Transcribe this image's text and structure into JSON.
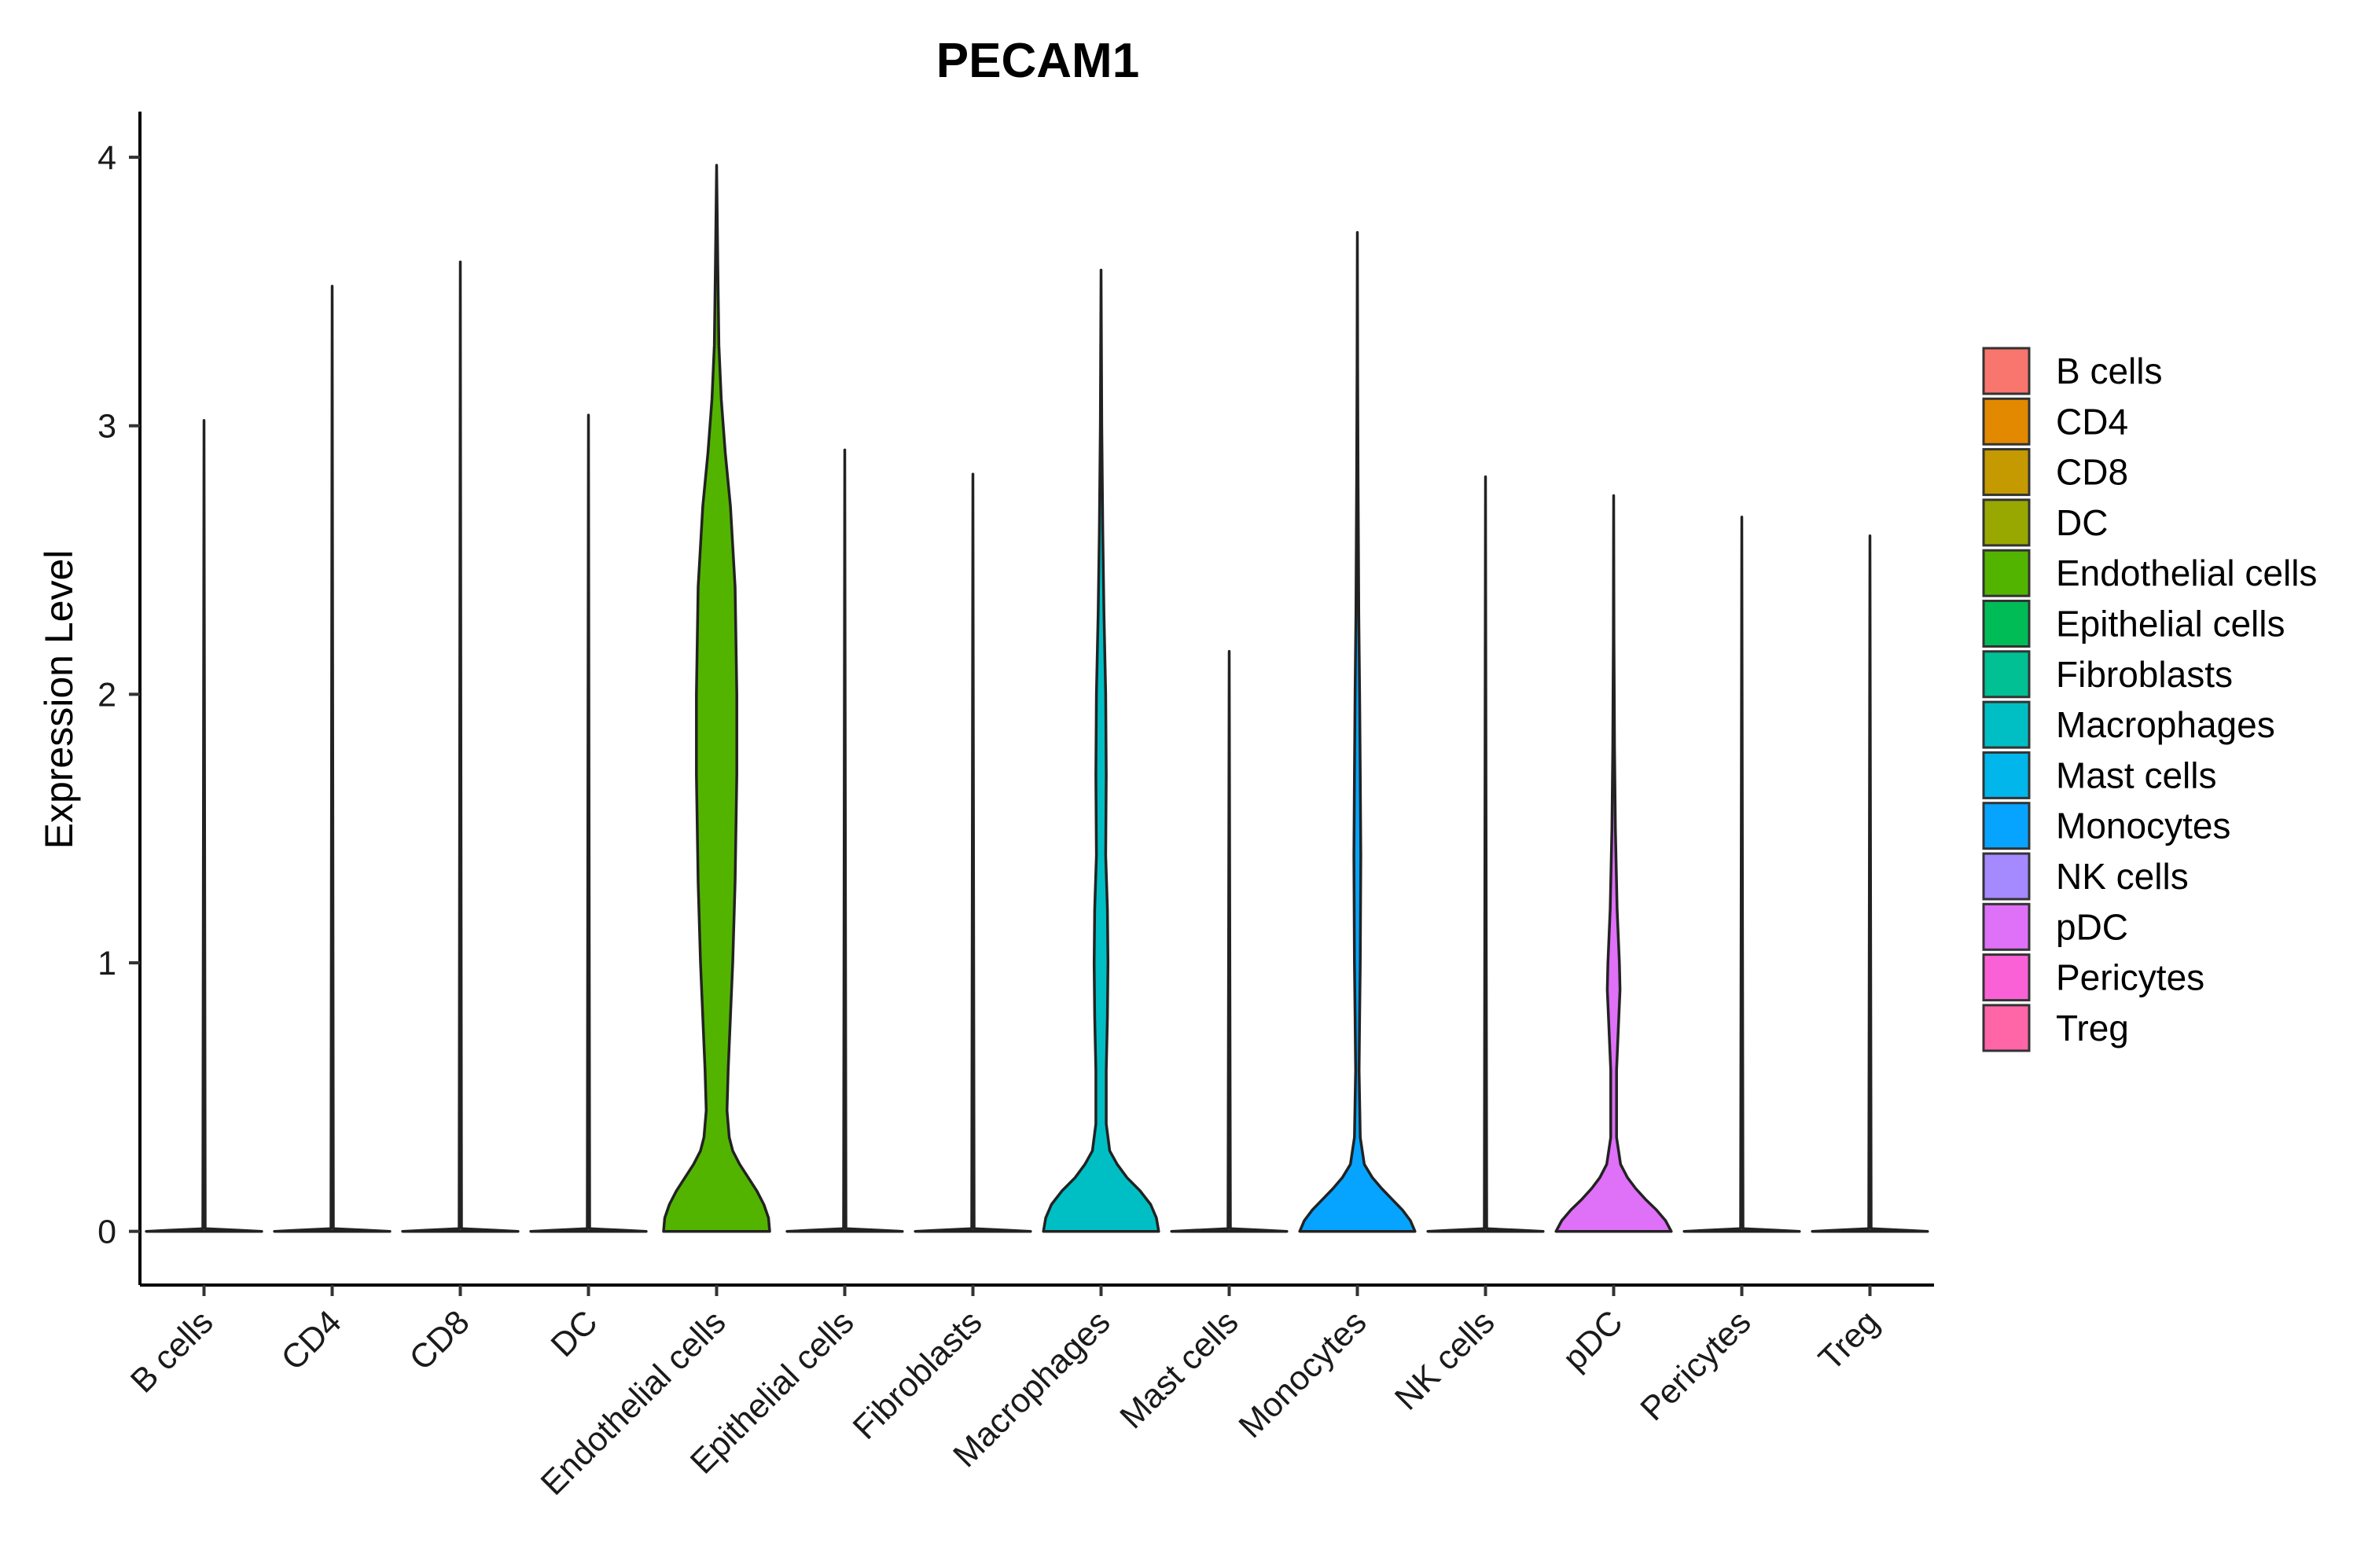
{
  "chart_data": {
    "type": "violin",
    "title": "PECAM1",
    "xlabel": "",
    "ylabel": "Expression Level",
    "ylim": [
      -0.2,
      4.17
    ],
    "yticks": [
      0,
      1,
      2,
      3,
      4
    ],
    "categories": [
      "B cells",
      "CD4",
      "CD8",
      "DC",
      "Endothelial cells",
      "Epithelial cells",
      "Fibroblasts",
      "Macrophages",
      "Mast cells",
      "Monocytes",
      "NK cells",
      "pDC",
      "Pericytes",
      "Treg"
    ],
    "colors": [
      "#F8766D",
      "#E38900",
      "#C49A00",
      "#99A800",
      "#53B400",
      "#00BC56",
      "#00C094",
      "#00BFC4",
      "#00B6EB",
      "#06A4FF",
      "#A58AFF",
      "#DF70F8",
      "#FB61D7",
      "#FF66A8"
    ],
    "max_expression": [
      3.02,
      3.52,
      3.61,
      3.04,
      3.97,
      2.91,
      2.82,
      3.58,
      2.16,
      3.72,
      2.81,
      2.74,
      2.66,
      2.59
    ],
    "density_profiles": [
      [
        [
          0,
          1.0
        ],
        [
          0.004,
          0.6
        ],
        [
          0.01,
          0.02
        ],
        [
          3.02,
          0.0
        ]
      ],
      [
        [
          0,
          1.0
        ],
        [
          0.004,
          0.6
        ],
        [
          0.01,
          0.02
        ],
        [
          3.52,
          0.0
        ]
      ],
      [
        [
          0,
          1.0
        ],
        [
          0.004,
          0.6
        ],
        [
          0.01,
          0.02
        ],
        [
          3.61,
          0.0
        ]
      ],
      [
        [
          0,
          1.0
        ],
        [
          0.004,
          0.6
        ],
        [
          0.01,
          0.02
        ],
        [
          3.04,
          0.0
        ]
      ],
      [
        [
          0,
          0.92
        ],
        [
          0.05,
          0.9
        ],
        [
          0.1,
          0.82
        ],
        [
          0.15,
          0.7
        ],
        [
          0.2,
          0.55
        ],
        [
          0.25,
          0.4
        ],
        [
          0.3,
          0.28
        ],
        [
          0.35,
          0.22
        ],
        [
          0.45,
          0.18
        ],
        [
          0.6,
          0.2
        ],
        [
          0.8,
          0.24
        ],
        [
          1.0,
          0.28
        ],
        [
          1.3,
          0.32
        ],
        [
          1.7,
          0.35
        ],
        [
          2.0,
          0.35
        ],
        [
          2.4,
          0.32
        ],
        [
          2.7,
          0.24
        ],
        [
          2.9,
          0.15
        ],
        [
          3.1,
          0.08
        ],
        [
          3.3,
          0.04
        ],
        [
          3.6,
          0.02
        ],
        [
          3.97,
          0.0
        ]
      ],
      [
        [
          0,
          1.0
        ],
        [
          0.004,
          0.6
        ],
        [
          0.01,
          0.02
        ],
        [
          2.91,
          0.0
        ]
      ],
      [
        [
          0,
          1.0
        ],
        [
          0.004,
          0.6
        ],
        [
          0.01,
          0.02
        ],
        [
          2.82,
          0.0
        ]
      ],
      [
        [
          0,
          1.0
        ],
        [
          0.05,
          0.96
        ],
        [
          0.1,
          0.86
        ],
        [
          0.15,
          0.68
        ],
        [
          0.2,
          0.45
        ],
        [
          0.25,
          0.28
        ],
        [
          0.3,
          0.15
        ],
        [
          0.4,
          0.09
        ],
        [
          0.6,
          0.09
        ],
        [
          0.8,
          0.11
        ],
        [
          1.0,
          0.12
        ],
        [
          1.2,
          0.11
        ],
        [
          1.4,
          0.08
        ],
        [
          1.7,
          0.09
        ],
        [
          2.0,
          0.08
        ],
        [
          2.3,
          0.05
        ],
        [
          2.6,
          0.03
        ],
        [
          3.0,
          0.012
        ],
        [
          3.58,
          0.0
        ]
      ],
      [
        [
          0,
          1.0
        ],
        [
          0.004,
          0.6
        ],
        [
          0.01,
          0.02
        ],
        [
          2.16,
          0.0
        ]
      ],
      [
        [
          0,
          1.0
        ],
        [
          0.04,
          0.92
        ],
        [
          0.08,
          0.78
        ],
        [
          0.12,
          0.6
        ],
        [
          0.16,
          0.42
        ],
        [
          0.2,
          0.26
        ],
        [
          0.25,
          0.12
        ],
        [
          0.35,
          0.05
        ],
        [
          0.6,
          0.03
        ],
        [
          0.8,
          0.04
        ],
        [
          1.0,
          0.05
        ],
        [
          1.4,
          0.06
        ],
        [
          1.7,
          0.05
        ],
        [
          2.0,
          0.04
        ],
        [
          2.3,
          0.025
        ],
        [
          2.8,
          0.012
        ],
        [
          3.2,
          0.005
        ],
        [
          3.72,
          0.0
        ]
      ],
      [
        [
          0,
          1.0
        ],
        [
          0.004,
          0.6
        ],
        [
          0.01,
          0.02
        ],
        [
          2.81,
          0.0
        ]
      ],
      [
        [
          0,
          1.0
        ],
        [
          0.04,
          0.9
        ],
        [
          0.08,
          0.74
        ],
        [
          0.12,
          0.55
        ],
        [
          0.16,
          0.38
        ],
        [
          0.2,
          0.24
        ],
        [
          0.25,
          0.12
        ],
        [
          0.35,
          0.05
        ],
        [
          0.6,
          0.05
        ],
        [
          0.8,
          0.09
        ],
        [
          0.9,
          0.11
        ],
        [
          1.0,
          0.1
        ],
        [
          1.2,
          0.06
        ],
        [
          1.5,
          0.03
        ],
        [
          1.8,
          0.015
        ],
        [
          2.2,
          0.005
        ],
        [
          2.74,
          0.0
        ]
      ],
      [
        [
          0,
          1.0
        ],
        [
          0.004,
          0.6
        ],
        [
          0.01,
          0.02
        ],
        [
          2.66,
          0.0
        ]
      ],
      [
        [
          0,
          1.0
        ],
        [
          0.004,
          0.6
        ],
        [
          0.01,
          0.02
        ],
        [
          2.59,
          0.0
        ]
      ]
    ],
    "grid": false,
    "legend_position": "right"
  }
}
